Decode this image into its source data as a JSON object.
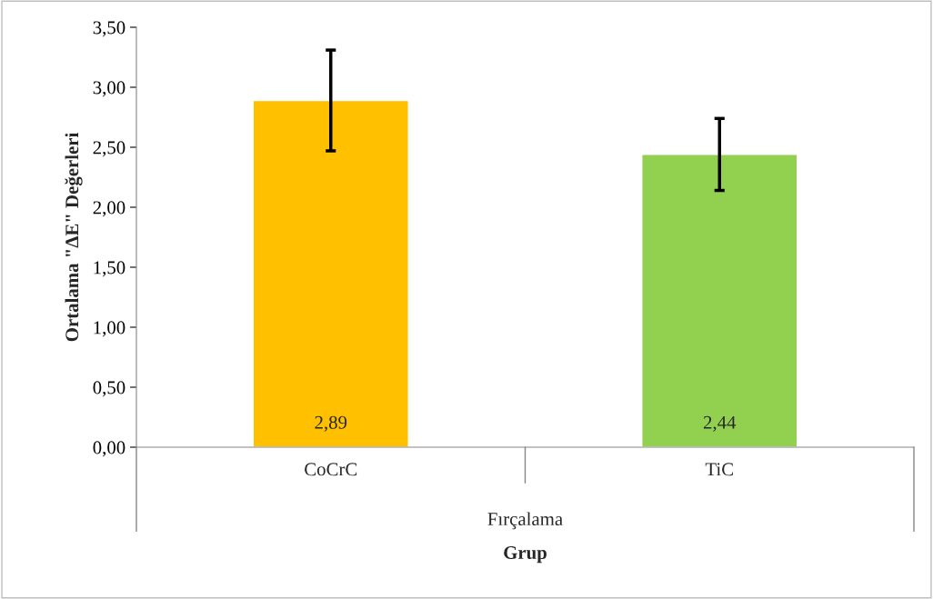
{
  "chart_data": {
    "type": "bar",
    "categories": [
      "CoCrC",
      "TiC"
    ],
    "values": [
      2.89,
      2.44
    ],
    "colors": [
      "#ffc000",
      "#92d050"
    ],
    "errors": [
      0.42,
      0.3
    ],
    "value_labels": [
      "2,89",
      "2,44"
    ],
    "ylabel": "Ortalama \"ΔE\" Değerleri",
    "xlabel": "Grup",
    "annotations": [
      "Fırçalama"
    ],
    "ylim": [
      0,
      3.5
    ],
    "yticks": [
      {
        "value": 0,
        "label": "0,00"
      },
      {
        "value": 0.5,
        "label": "0,50"
      },
      {
        "value": 1.0,
        "label": "1,00"
      },
      {
        "value": 1.5,
        "label": "1,50"
      },
      {
        "value": 2.0,
        "label": "2,00"
      },
      {
        "value": 2.5,
        "label": "2,50"
      },
      {
        "value": 3.0,
        "label": "3,00"
      },
      {
        "value": 3.5,
        "label": "3,50"
      }
    ],
    "grid": false
  }
}
